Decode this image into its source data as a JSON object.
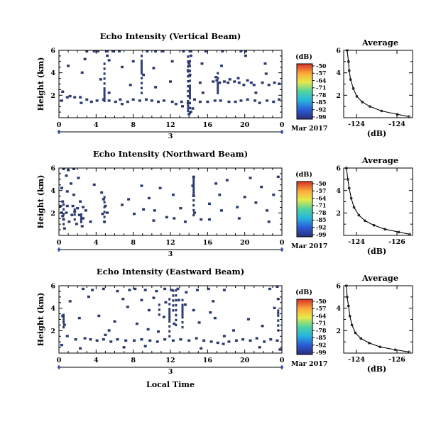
{
  "chart_data": [
    {
      "type": "heatmap",
      "title": "Echo Intensity (Vertical Beam)",
      "ylabel": "Height (km)",
      "xlabel": "",
      "xticks": [
        "0",
        "4",
        "8",
        "12",
        "16",
        "20",
        "0"
      ],
      "yticks": [
        "2",
        "4",
        "6"
      ],
      "date_day": "3",
      "date_month": "Mar 2017",
      "xlim": [
        0,
        24
      ],
      "ylim": [
        0,
        6
      ],
      "colorbar": {
        "unit": "(dB)",
        "ticks": [
          "-50",
          "-57",
          "-64",
          "-71",
          "-78",
          "-85",
          "-92",
          "-99"
        ]
      },
      "cell_color": "#2b3a70",
      "cells": [
        [
          3,
          5.9
        ],
        [
          3.8,
          5.9
        ],
        [
          4.2,
          5.9
        ],
        [
          5.2,
          5.9
        ],
        [
          5.8,
          5.9
        ],
        [
          6.5,
          5.9
        ],
        [
          9.5,
          5.9
        ],
        [
          10.4,
          5.9
        ],
        [
          11.2,
          5.9
        ],
        [
          13.4,
          5.9
        ],
        [
          14.2,
          5.9
        ],
        [
          15.8,
          5.9
        ],
        [
          17.6,
          5.9
        ],
        [
          19.6,
          5.9
        ],
        [
          20.1,
          5.9
        ],
        [
          5.2,
          5.5
        ],
        [
          14.2,
          5.5
        ],
        [
          20.1,
          5.5
        ],
        [
          2.8,
          5.2
        ],
        [
          5.4,
          5.1
        ],
        [
          8,
          5.0
        ],
        [
          12.2,
          5.0
        ],
        [
          14.0,
          4.8
        ],
        [
          15.4,
          4.8
        ],
        [
          17.5,
          4.6
        ],
        [
          22.2,
          4.8
        ],
        [
          1,
          4.6
        ],
        [
          6.8,
          4.5
        ],
        [
          10.2,
          4.4
        ],
        [
          13.9,
          4.2
        ],
        [
          2.5,
          4.0
        ],
        [
          9.1,
          3.8
        ],
        [
          14.1,
          3.8
        ],
        [
          16.9,
          3.6
        ],
        [
          19.3,
          3.5
        ],
        [
          22.3,
          3.9
        ],
        [
          4.5,
          3.4
        ],
        [
          12.0,
          3.2
        ],
        [
          18.2,
          3.1
        ],
        [
          20.7,
          3.1
        ],
        [
          7.7,
          2.9
        ],
        [
          10.4,
          2.7
        ],
        [
          5.4,
          2.2
        ],
        [
          15.5,
          2.2
        ],
        [
          21.2,
          2.2
        ],
        [
          16.6,
          3.2
        ],
        [
          17.0,
          3.3
        ],
        [
          17.3,
          3.1
        ],
        [
          17.8,
          3.2
        ],
        [
          18.4,
          3.4
        ],
        [
          18.9,
          3.2
        ],
        [
          19.4,
          3.1
        ],
        [
          19.9,
          2.9
        ],
        [
          20.3,
          3.3
        ],
        [
          21.0,
          2.9
        ],
        [
          21.9,
          3.1
        ],
        [
          22.6,
          2.9
        ],
        [
          23.2,
          3.1
        ],
        [
          23.7,
          3.0
        ],
        [
          15.2,
          3.1
        ],
        [
          0.4,
          2.3
        ],
        [
          0.9,
          1.8
        ],
        [
          1.2,
          1.9
        ],
        [
          1.7,
          1.8
        ],
        [
          2.3,
          1.8
        ],
        [
          3.0,
          1.6
        ],
        [
          3.5,
          1.4
        ],
        [
          4.1,
          1.5
        ],
        [
          4.8,
          1.6
        ],
        [
          5.4,
          1.5
        ],
        [
          6.1,
          1.4
        ],
        [
          6.6,
          1.6
        ],
        [
          7.4,
          1.4
        ],
        [
          8.0,
          1.6
        ],
        [
          8.7,
          1.5
        ],
        [
          9.4,
          1.6
        ],
        [
          10.0,
          1.5
        ],
        [
          10.7,
          1.4
        ],
        [
          11.3,
          1.5
        ],
        [
          12.2,
          1.4
        ],
        [
          13.2,
          1.4
        ],
        [
          13.9,
          1.3
        ],
        [
          14.6,
          1.6
        ],
        [
          15.2,
          1.4
        ],
        [
          16.0,
          1.4
        ],
        [
          16.8,
          1.5
        ],
        [
          17.4,
          1.5
        ],
        [
          18.3,
          1.4
        ],
        [
          19.0,
          1.4
        ],
        [
          19.6,
          1.5
        ],
        [
          20.3,
          1.6
        ],
        [
          21.1,
          1.5
        ],
        [
          21.6,
          1.3
        ],
        [
          22.4,
          1.5
        ],
        [
          23.1,
          1.4
        ],
        [
          23.7,
          1.6
        ],
        [
          14.2,
          0.5
        ],
        [
          14.0,
          0.3
        ],
        [
          14.4,
          0.8
        ],
        [
          13.3,
          1.0
        ],
        [
          12.6,
          1.2
        ],
        [
          0.3,
          1.5
        ],
        [
          2.4,
          1.3
        ],
        [
          6.8,
          1.2
        ]
      ],
      "vstreaks": [
        {
          "x": 13.9,
          "y0": 0.6,
          "y1": 5.6
        },
        {
          "x": 14.1,
          "y0": 0.2,
          "y1": 5.3
        },
        {
          "x": 4.9,
          "y0": 1.5,
          "y1": 5.2
        },
        {
          "x": 8.9,
          "y0": 2.2,
          "y1": 5.9
        },
        {
          "x": 17.1,
          "y0": 2.2,
          "y1": 4.2
        }
      ]
    },
    {
      "type": "line",
      "title": "Average",
      "xlabel": "(dB)",
      "ylabel": "",
      "xticks": [
        "-124",
        "-124"
      ],
      "yticks": [
        "2",
        "4",
        "6"
      ],
      "ylim": [
        0,
        6
      ],
      "x": [
        0.05,
        0.07,
        0.08,
        0.1,
        0.14,
        0.19,
        0.27,
        0.38,
        0.55,
        0.78,
        0.95
      ],
      "y": [
        6,
        5,
        4.2,
        3.4,
        2.6,
        1.9,
        1.4,
        1.0,
        0.6,
        0.3,
        0.1
      ]
    },
    {
      "type": "heatmap",
      "title": "Echo Intensity (Northward Beam)",
      "ylabel": "Height (km)",
      "xlabel": "",
      "xticks": [
        "0",
        "4",
        "8",
        "12",
        "16",
        "20",
        "0"
      ],
      "yticks": [
        "2",
        "4",
        "6"
      ],
      "date_day": "3",
      "date_month": "Mar 2017",
      "xlim": [
        0,
        24
      ],
      "ylim": [
        0,
        6
      ],
      "colorbar": {
        "unit": "(dB)",
        "ticks": [
          "-50",
          "-57",
          "-64",
          "-71",
          "-78",
          "-85",
          "-92",
          "-99"
        ]
      },
      "cell_color": "#2b3a70",
      "cells": [
        [
          0.5,
          5.9
        ],
        [
          1.0,
          5.8
        ],
        [
          1.6,
          5.9
        ],
        [
          0.8,
          5.3
        ],
        [
          2.1,
          5.1
        ],
        [
          1.3,
          4.6
        ],
        [
          0.3,
          4.2
        ],
        [
          0.9,
          3.9
        ],
        [
          1.6,
          3.6
        ],
        [
          0.4,
          3.0
        ],
        [
          2.3,
          3.0
        ],
        [
          0.9,
          2.6
        ],
        [
          1.5,
          2.6
        ],
        [
          2.0,
          2.4
        ],
        [
          2.6,
          2.5
        ],
        [
          0.3,
          2.0
        ],
        [
          0.8,
          2.0
        ],
        [
          1.4,
          1.8
        ],
        [
          2.2,
          1.8
        ],
        [
          2.6,
          1.5
        ],
        [
          0.5,
          1.4
        ],
        [
          1.1,
          1.2
        ],
        [
          1.9,
          1.0
        ],
        [
          0.6,
          0.6
        ],
        [
          2.5,
          0.8
        ],
        [
          0.2,
          2.6
        ],
        [
          1.7,
          2.1
        ],
        [
          2.9,
          2.2
        ],
        [
          3.4,
          1.2
        ],
        [
          0.4,
          1.7
        ],
        [
          4.6,
          3.8
        ],
        [
          4.8,
          3.2
        ],
        [
          5.0,
          2.6
        ],
        [
          4.7,
          1.9
        ],
        [
          4.9,
          1.2
        ],
        [
          5.2,
          2.0
        ],
        [
          7.5,
          3.2
        ],
        [
          8.1,
          1.9
        ],
        [
          8.9,
          4.4
        ],
        [
          9.7,
          3.3
        ],
        [
          10.3,
          2.2
        ],
        [
          10.9,
          4.2
        ],
        [
          11.6,
          1.6
        ],
        [
          12.3,
          3.6
        ],
        [
          13.1,
          2.4
        ],
        [
          14.5,
          5.2
        ],
        [
          14.4,
          4.4
        ],
        [
          14.5,
          3.5
        ],
        [
          14.6,
          2.0
        ],
        [
          15.3,
          1.4
        ],
        [
          16.2,
          2.8
        ],
        [
          16.9,
          4.6
        ],
        [
          17.3,
          3.6
        ],
        [
          17.5,
          2.2
        ],
        [
          18.1,
          4.9
        ],
        [
          19.2,
          2.5
        ],
        [
          20.0,
          3.4
        ],
        [
          20.6,
          5.1
        ],
        [
          21.2,
          2.9
        ],
        [
          21.8,
          4.3
        ],
        [
          22.4,
          2.2
        ],
        [
          23.1,
          3.6
        ],
        [
          23.6,
          5.2
        ],
        [
          12.4,
          1.5
        ],
        [
          6.8,
          2.7
        ],
        [
          3.8,
          4.5
        ],
        [
          10.2,
          1.3
        ],
        [
          16.2,
          1.4
        ],
        [
          19.4,
          1.5
        ],
        [
          22.6,
          1.2
        ],
        [
          9.1,
          2.3
        ],
        [
          13.6,
          1.2
        ]
      ],
      "vstreaks": [
        {
          "x": 0.5,
          "y0": 1.0,
          "y1": 2.8
        },
        {
          "x": 1.7,
          "y0": 1.2,
          "y1": 2.6
        },
        {
          "x": 2.4,
          "y0": 1.2,
          "y1": 2.0
        },
        {
          "x": 4.9,
          "y0": 1.2,
          "y1": 3.8
        },
        {
          "x": 14.5,
          "y0": 1.8,
          "y1": 5.4
        }
      ]
    },
    {
      "type": "line",
      "title": "Average",
      "xlabel": "(dB)",
      "ylabel": "",
      "xticks": [
        "-124",
        "-126"
      ],
      "yticks": [
        "2",
        "4",
        "6"
      ],
      "ylim": [
        0,
        6
      ],
      "x": [
        0.04,
        0.06,
        0.08,
        0.11,
        0.15,
        0.22,
        0.31,
        0.44,
        0.6,
        0.8,
        0.96
      ],
      "y": [
        6,
        5,
        4.2,
        3.3,
        2.5,
        1.8,
        1.3,
        0.9,
        0.55,
        0.3,
        0.1
      ]
    },
    {
      "type": "heatmap",
      "title": "Echo Intensity (Eastward Beam)",
      "ylabel": "Height (km)",
      "xlabel": "Local Time",
      "xticks": [
        "0",
        "4",
        "8",
        "12",
        "16",
        "20",
        "0"
      ],
      "yticks": [
        "2",
        "4",
        "6"
      ],
      "date_day": "3",
      "date_month": "Mar 2017",
      "xlim": [
        0,
        24
      ],
      "ylim": [
        0,
        6
      ],
      "colorbar": {
        "unit": "(dB)",
        "ticks": [
          "-50",
          "-57",
          "-64",
          "-71",
          "-78",
          "-85",
          "-92",
          "-99"
        ]
      },
      "cell_color": "#2b3a70",
      "cells": [
        [
          2.6,
          5.7
        ],
        [
          3.6,
          5.6
        ],
        [
          4.8,
          5.7
        ],
        [
          6.3,
          5.5
        ],
        [
          7.6,
          5.6
        ],
        [
          8.2,
          5.7
        ],
        [
          9.3,
          5.6
        ],
        [
          10.5,
          5.5
        ],
        [
          11.4,
          5.7
        ],
        [
          12.1,
          5.6
        ],
        [
          12.8,
          5.7
        ],
        [
          13.7,
          5.4
        ],
        [
          14.9,
          5.6
        ],
        [
          16.1,
          5.7
        ],
        [
          17.8,
          5.6
        ],
        [
          22.7,
          5.7
        ],
        [
          23.5,
          5.9
        ],
        [
          3.2,
          5.0
        ],
        [
          6.9,
          4.8
        ],
        [
          8.9,
          4.7
        ],
        [
          10.2,
          4.9
        ],
        [
          11.5,
          4.5
        ],
        [
          12.9,
          4.7
        ],
        [
          13.6,
          4.3
        ],
        [
          16.6,
          4.6
        ],
        [
          23.6,
          4.8
        ],
        [
          23.2,
          4.0
        ],
        [
          1.2,
          4.6
        ],
        [
          7.4,
          4.1
        ],
        [
          9.7,
          3.8
        ],
        [
          14.5,
          3.8
        ],
        [
          16.3,
          3.6
        ],
        [
          0.4,
          3.3
        ],
        [
          2.2,
          3.1
        ],
        [
          4.3,
          3.3
        ],
        [
          6.0,
          2.8
        ],
        [
          8.4,
          2.6
        ],
        [
          11.3,
          3.2
        ],
        [
          12.4,
          2.6
        ],
        [
          15.1,
          2.7
        ],
        [
          16.8,
          3.1
        ],
        [
          20.4,
          3.0
        ],
        [
          21.9,
          2.4
        ],
        [
          0.6,
          2.5
        ],
        [
          5.4,
          2.0
        ],
        [
          9.6,
          2.1
        ],
        [
          18.8,
          2.0
        ],
        [
          0.9,
          1.5
        ],
        [
          1.8,
          1.2
        ],
        [
          2.8,
          1.3
        ],
        [
          3.4,
          1.2
        ],
        [
          4.1,
          1.1
        ],
        [
          4.8,
          1.2
        ],
        [
          5.6,
          1.0
        ],
        [
          6.3,
          1.2
        ],
        [
          7.2,
          1.1
        ],
        [
          8.1,
          1.1
        ],
        [
          8.9,
          1.2
        ],
        [
          9.8,
          1.1
        ],
        [
          10.6,
          1.0
        ],
        [
          11.4,
          1.2
        ],
        [
          12.3,
          1.1
        ],
        [
          13.1,
          1.2
        ],
        [
          14.0,
          1.1
        ],
        [
          14.8,
          1.3
        ],
        [
          15.6,
          1.1
        ],
        [
          16.4,
          1.0
        ],
        [
          17.1,
          0.9
        ],
        [
          17.7,
          0.8
        ],
        [
          18.3,
          1.0
        ],
        [
          19.1,
          1.1
        ],
        [
          19.8,
          1.2
        ],
        [
          20.6,
          1.1
        ],
        [
          21.3,
          1.3
        ],
        [
          22.1,
          1.0
        ],
        [
          22.8,
          1.2
        ],
        [
          23.5,
          1.1
        ],
        [
          0.3,
          0.7
        ],
        [
          2.3,
          0.4
        ],
        [
          7.0,
          0.5
        ],
        [
          9.3,
          0.6
        ],
        [
          15.3,
          0.4
        ],
        [
          21.6,
          0.5
        ],
        [
          23.8,
          0.3
        ],
        [
          5.0,
          1.6
        ],
        [
          10.7,
          1.9
        ],
        [
          17.8,
          1.5
        ]
      ],
      "vstreaks": [
        {
          "x": 11.9,
          "y0": 1.5,
          "y1": 5.2
        },
        {
          "x": 12.6,
          "y0": 2.5,
          "y1": 5.6
        },
        {
          "x": 13.3,
          "y0": 2.3,
          "y1": 5.0
        },
        {
          "x": 12.3,
          "y0": 3.8,
          "y1": 5.8
        },
        {
          "x": 10.8,
          "y0": 3.2,
          "y1": 4.6
        },
        {
          "x": 0.5,
          "y0": 2.3,
          "y1": 3.5
        },
        {
          "x": 23.6,
          "y0": 1.8,
          "y1": 3.8
        }
      ]
    },
    {
      "type": "line",
      "title": "Average",
      "xlabel": "(dB)",
      "ylabel": "",
      "xticks": [
        "-124",
        "-126"
      ],
      "yticks": [
        "2",
        "4",
        "6"
      ],
      "ylim": [
        0,
        6
      ],
      "x": [
        0.04,
        0.05,
        0.07,
        0.09,
        0.12,
        0.17,
        0.25,
        0.37,
        0.53,
        0.75,
        0.95
      ],
      "y": [
        6,
        5,
        4.2,
        3.3,
        2.5,
        1.8,
        1.3,
        0.9,
        0.55,
        0.3,
        0.1
      ]
    }
  ]
}
